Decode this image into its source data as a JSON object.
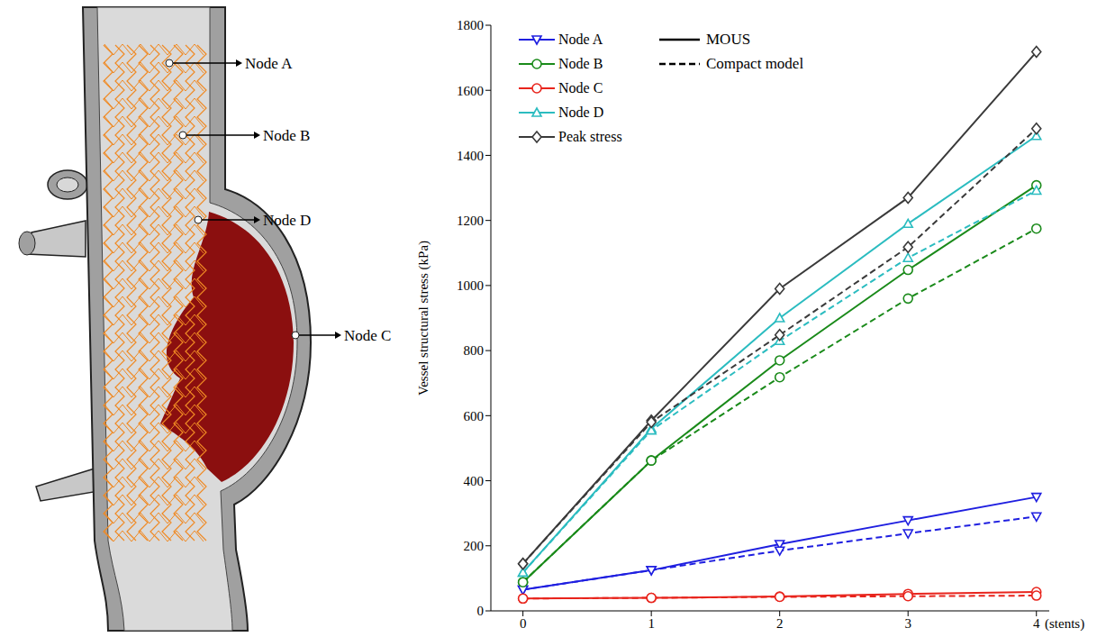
{
  "diagram": {
    "nodes": [
      {
        "label": "Node A"
      },
      {
        "label": "Node B"
      },
      {
        "label": "Node D"
      },
      {
        "label": "Node C"
      }
    ]
  },
  "chart_data": {
    "type": "line",
    "y_label": "Vessel structural stress (kPa)",
    "x_label": "(stents)",
    "x": [
      0,
      1,
      2,
      3,
      4
    ],
    "xlim": [
      -0.25,
      4.1
    ],
    "xticks": [
      0,
      1,
      2,
      3,
      4
    ],
    "ylim": [
      0,
      1800
    ],
    "yticks": [
      0,
      200,
      400,
      600,
      800,
      1000,
      1200,
      1400,
      1600,
      1800
    ],
    "grid": false,
    "legend": "top-left",
    "models": [
      {
        "name": "MOUS",
        "line_style": "solid"
      },
      {
        "name": "Compact model",
        "line_style": "dashed"
      }
    ],
    "series": [
      {
        "name": "Node A",
        "model": "MOUS",
        "color": "#1f1fe0",
        "marker": "triangle-down",
        "line_style": "solid",
        "values": [
          65,
          125,
          205,
          278,
          350
        ]
      },
      {
        "name": "Node B",
        "model": "MOUS",
        "color": "#1a8a1a",
        "marker": "circle",
        "line_style": "solid",
        "values": [
          88,
          462,
          770,
          1048,
          1308
        ]
      },
      {
        "name": "Node C",
        "model": "MOUS",
        "color": "#e8241c",
        "marker": "circle",
        "line_style": "solid",
        "values": [
          38,
          40,
          44,
          52,
          58
        ]
      },
      {
        "name": "Node D",
        "model": "MOUS",
        "color": "#2bbcc0",
        "marker": "triangle-up",
        "line_style": "solid",
        "values": [
          118,
          560,
          900,
          1190,
          1460
        ]
      },
      {
        "name": "Peak stress",
        "model": "MOUS",
        "color": "#3a3a3a",
        "marker": "diamond",
        "line_style": "solid",
        "values": [
          145,
          585,
          990,
          1270,
          1718
        ]
      },
      {
        "name": "Node A",
        "model": "Compact model",
        "color": "#1f1fe0",
        "marker": "triangle-down",
        "line_style": "dashed",
        "values": [
          65,
          125,
          185,
          238,
          290
        ]
      },
      {
        "name": "Node B",
        "model": "Compact model",
        "color": "#1a8a1a",
        "marker": "circle",
        "line_style": "dashed",
        "values": [
          88,
          462,
          718,
          960,
          1175
        ]
      },
      {
        "name": "Node C",
        "model": "Compact model",
        "color": "#e8241c",
        "marker": "circle",
        "line_style": "dashed",
        "values": [
          38,
          40,
          43,
          45,
          47
        ]
      },
      {
        "name": "Node D",
        "model": "Compact model",
        "color": "#2bbcc0",
        "marker": "triangle-up",
        "line_style": "dashed",
        "values": [
          118,
          555,
          830,
          1085,
          1292
        ]
      },
      {
        "name": "Peak stress",
        "model": "Compact model",
        "color": "#3a3a3a",
        "marker": "diamond",
        "line_style": "dashed",
        "values": [
          145,
          580,
          848,
          1118,
          1482
        ]
      }
    ]
  }
}
